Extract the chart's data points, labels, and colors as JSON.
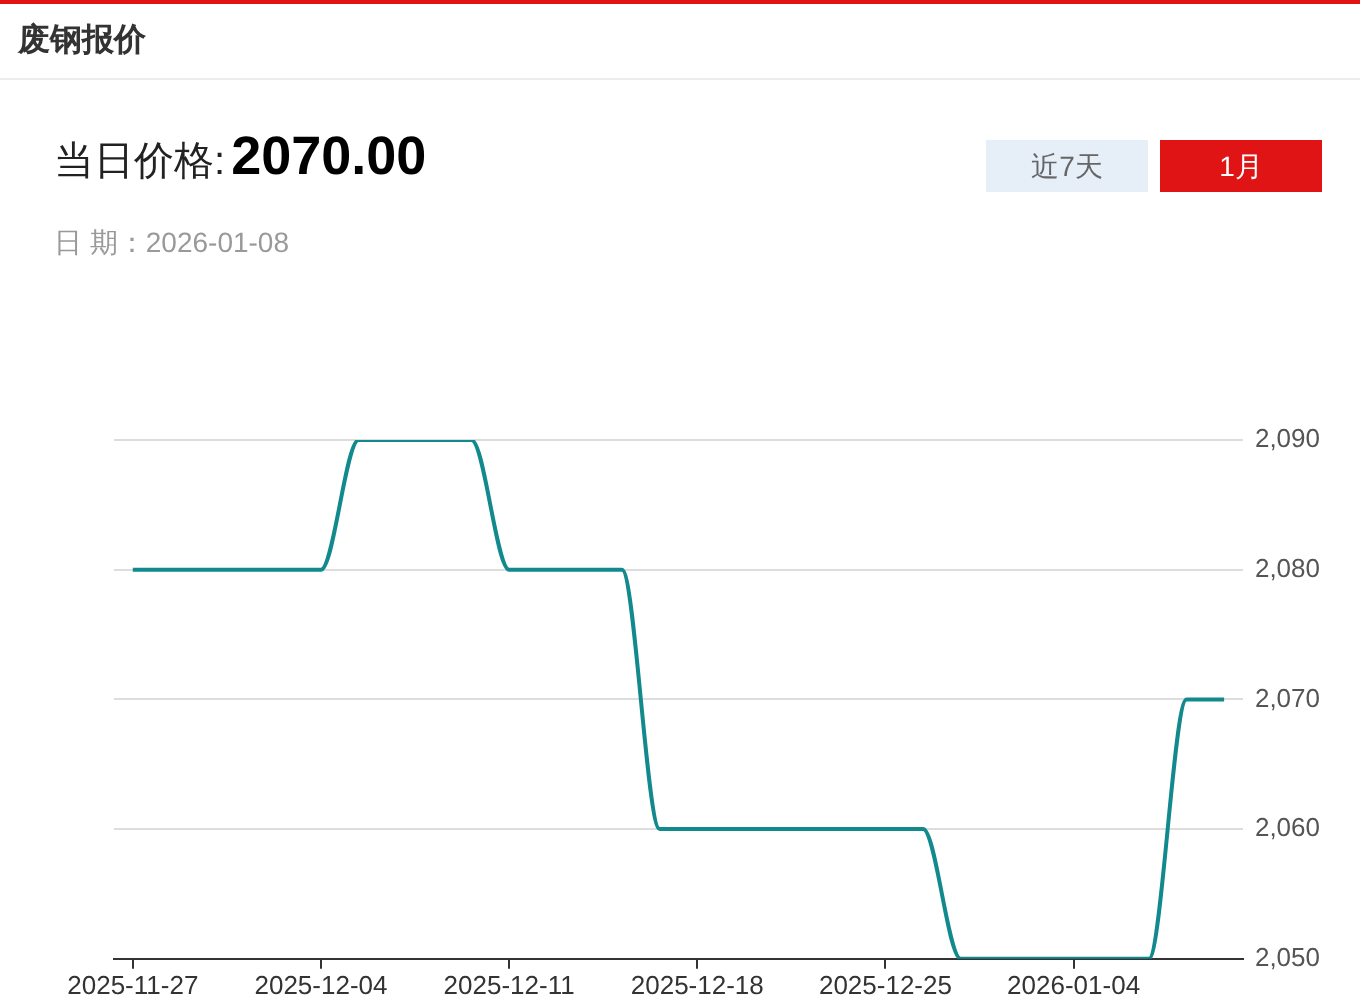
{
  "chart_data": {
    "type": "line",
    "title": "废钢报价",
    "annotations": [
      "当日价格:",
      "2070.00",
      "日 期：2026-01-08",
      "近7天",
      "1月"
    ],
    "categories": [
      "2025-11-27",
      null,
      null,
      null,
      null,
      "2025-12-04",
      null,
      null,
      null,
      null,
      "2025-12-11",
      null,
      null,
      null,
      null,
      "2025-12-18",
      null,
      null,
      null,
      null,
      "2025-12-25",
      null,
      null,
      null,
      null,
      "2026-01-04",
      null,
      null,
      null,
      null
    ],
    "values": [
      2080,
      2080,
      2080,
      2080,
      2080,
      2080,
      2090,
      2090,
      2090,
      2090,
      2080,
      2080,
      2080,
      2080,
      2060,
      2060,
      2060,
      2060,
      2060,
      2060,
      2060,
      2060,
      2050,
      2050,
      2050,
      2050,
      2050,
      2050,
      2070,
      2070
    ],
    "color": "#12898d",
    "ylim": [
      2050,
      2090
    ],
    "yticks": [
      {
        "value": 2050,
        "label": "2,050"
      },
      {
        "value": 2060,
        "label": "2,060"
      },
      {
        "value": 2070,
        "label": "2,070"
      },
      {
        "value": 2080,
        "label": "2,080"
      },
      {
        "value": 2090,
        "label": "2,090"
      }
    ],
    "grid": "y",
    "marker": "none",
    "line_style": "solid"
  }
}
